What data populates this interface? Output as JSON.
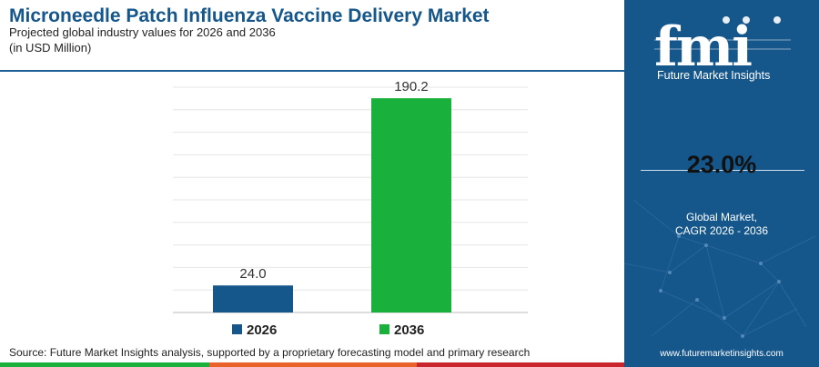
{
  "header": {
    "title": "Microneedle Patch Influenza Vaccine Delivery Market",
    "subtitle": "Projected global industry values for 2026 and 2036",
    "unit": "(in USD Million)"
  },
  "chart_data": {
    "type": "bar",
    "categories": [
      "2026",
      "2036"
    ],
    "values": [
      24.0,
      190.2
    ],
    "value_labels": [
      "24.0",
      "190.2"
    ],
    "colors": [
      "#15568b",
      "#1ab03c"
    ],
    "ylim": [
      0,
      200
    ],
    "grid": true,
    "legend": "bottom",
    "legend_entries": [
      "2026",
      "2036"
    ]
  },
  "side_panel": {
    "brand": "fmi",
    "brand_name": "Future Market Insights",
    "cagr_value": "23.0%",
    "cagr_label_line1": "Global Market,",
    "cagr_label_line2": "CAGR 2026 - 2036",
    "website": "www.futuremarketinsights.com"
  },
  "footer": {
    "source": "Source: Future Market Insights analysis, supported by a proprietary forecasting model and primary research"
  },
  "colors": {
    "primary_blue": "#15568b",
    "accent_green": "#1ab03c",
    "accent_orange": "#e8622a",
    "accent_red": "#c8252c"
  }
}
